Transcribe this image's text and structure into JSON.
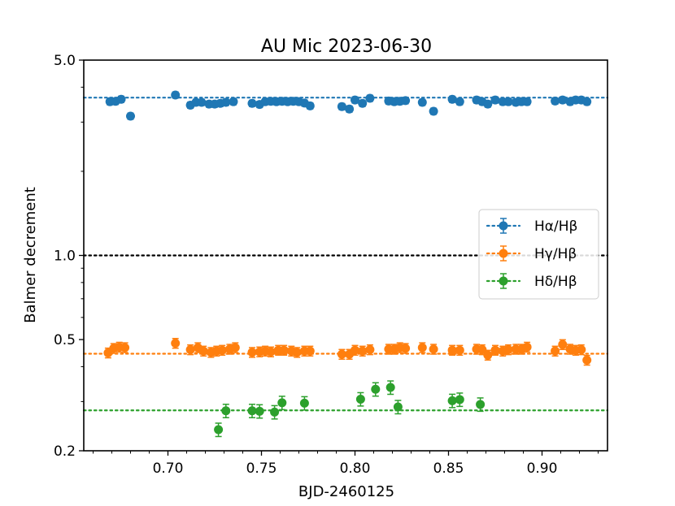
{
  "chart_data": {
    "type": "scatter",
    "title": "AU Mic 2023-06-30",
    "xlabel": "BJD-2460125",
    "ylabel": "Balmer decrement",
    "yscale": "log",
    "xlim": [
      0.655,
      0.935
    ],
    "ylim": [
      0.2,
      5.0
    ],
    "x_ticks": [
      {
        "value": 0.7,
        "label": "0.70"
      },
      {
        "value": 0.75,
        "label": "0.75"
      },
      {
        "value": 0.8,
        "label": "0.80"
      },
      {
        "value": 0.85,
        "label": "0.85"
      },
      {
        "value": 0.9,
        "label": "0.90"
      }
    ],
    "y_ticks": [
      {
        "value": 0.2,
        "label": "0.2"
      },
      {
        "value": 0.5,
        "label": "0.5"
      },
      {
        "value": 1.0,
        "label": "1.0"
      },
      {
        "value": 5.0,
        "label": "5.0"
      }
    ],
    "y_minor_ticks": [
      0.3,
      0.4,
      0.6,
      0.7,
      0.8,
      0.9,
      2,
      3,
      4
    ],
    "grid": false,
    "legend_position": "right",
    "reference_lines": [
      {
        "y": 1.0,
        "color": "#000000"
      },
      {
        "y": 3.67,
        "color": "#1f77b4"
      },
      {
        "y": 0.445,
        "color": "#ff7f0e"
      },
      {
        "y": 0.279,
        "color": "#2ca02c"
      }
    ],
    "series": [
      {
        "name": "Hα/Hβ",
        "color": "#1f77b4",
        "err_frac": 0.025,
        "points": [
          [
            0.669,
            3.55
          ],
          [
            0.672,
            3.56
          ],
          [
            0.675,
            3.62
          ],
          [
            0.68,
            3.15
          ],
          [
            0.704,
            3.75
          ],
          [
            0.712,
            3.45
          ],
          [
            0.715,
            3.53
          ],
          [
            0.718,
            3.53
          ],
          [
            0.722,
            3.48
          ],
          [
            0.725,
            3.48
          ],
          [
            0.728,
            3.5
          ],
          [
            0.731,
            3.53
          ],
          [
            0.735,
            3.55
          ],
          [
            0.745,
            3.5
          ],
          [
            0.749,
            3.47
          ],
          [
            0.752,
            3.55
          ],
          [
            0.755,
            3.56
          ],
          [
            0.758,
            3.55
          ],
          [
            0.761,
            3.56
          ],
          [
            0.764,
            3.55
          ],
          [
            0.767,
            3.56
          ],
          [
            0.77,
            3.55
          ],
          [
            0.773,
            3.51
          ],
          [
            0.776,
            3.43
          ],
          [
            0.793,
            3.41
          ],
          [
            0.797,
            3.34
          ],
          [
            0.8,
            3.6
          ],
          [
            0.804,
            3.5
          ],
          [
            0.808,
            3.65
          ],
          [
            0.818,
            3.57
          ],
          [
            0.821,
            3.55
          ],
          [
            0.824,
            3.56
          ],
          [
            0.827,
            3.58
          ],
          [
            0.836,
            3.53
          ],
          [
            0.842,
            3.28
          ],
          [
            0.852,
            3.62
          ],
          [
            0.856,
            3.55
          ],
          [
            0.865,
            3.6
          ],
          [
            0.868,
            3.55
          ],
          [
            0.871,
            3.48
          ],
          [
            0.875,
            3.6
          ],
          [
            0.879,
            3.55
          ],
          [
            0.882,
            3.55
          ],
          [
            0.886,
            3.53
          ],
          [
            0.889,
            3.55
          ],
          [
            0.892,
            3.55
          ],
          [
            0.907,
            3.57
          ],
          [
            0.911,
            3.6
          ],
          [
            0.915,
            3.55
          ],
          [
            0.918,
            3.6
          ],
          [
            0.921,
            3.6
          ],
          [
            0.924,
            3.55
          ]
        ]
      },
      {
        "name": "Hγ/Hβ",
        "color": "#ff7f0e",
        "err_frac": 0.04,
        "points": [
          [
            0.668,
            0.448
          ],
          [
            0.671,
            0.465
          ],
          [
            0.674,
            0.47
          ],
          [
            0.677,
            0.468
          ],
          [
            0.704,
            0.485
          ],
          [
            0.712,
            0.46
          ],
          [
            0.716,
            0.468
          ],
          [
            0.719,
            0.455
          ],
          [
            0.723,
            0.45
          ],
          [
            0.726,
            0.455
          ],
          [
            0.729,
            0.458
          ],
          [
            0.733,
            0.462
          ],
          [
            0.736,
            0.468
          ],
          [
            0.745,
            0.45
          ],
          [
            0.749,
            0.452
          ],
          [
            0.752,
            0.455
          ],
          [
            0.755,
            0.452
          ],
          [
            0.759,
            0.458
          ],
          [
            0.762,
            0.458
          ],
          [
            0.766,
            0.455
          ],
          [
            0.769,
            0.45
          ],
          [
            0.773,
            0.455
          ],
          [
            0.776,
            0.455
          ],
          [
            0.793,
            0.443
          ],
          [
            0.797,
            0.443
          ],
          [
            0.8,
            0.458
          ],
          [
            0.804,
            0.455
          ],
          [
            0.808,
            0.46
          ],
          [
            0.818,
            0.462
          ],
          [
            0.821,
            0.462
          ],
          [
            0.824,
            0.468
          ],
          [
            0.827,
            0.465
          ],
          [
            0.836,
            0.468
          ],
          [
            0.842,
            0.462
          ],
          [
            0.852,
            0.458
          ],
          [
            0.856,
            0.458
          ],
          [
            0.865,
            0.462
          ],
          [
            0.868,
            0.46
          ],
          [
            0.871,
            0.44
          ],
          [
            0.875,
            0.458
          ],
          [
            0.879,
            0.455
          ],
          [
            0.882,
            0.46
          ],
          [
            0.886,
            0.462
          ],
          [
            0.889,
            0.462
          ],
          [
            0.892,
            0.47
          ],
          [
            0.907,
            0.455
          ],
          [
            0.911,
            0.48
          ],
          [
            0.915,
            0.462
          ],
          [
            0.918,
            0.458
          ],
          [
            0.921,
            0.46
          ],
          [
            0.924,
            0.422
          ]
        ]
      },
      {
        "name": "Hδ/Hβ",
        "color": "#2ca02c",
        "err_frac": 0.055,
        "points": [
          [
            0.727,
            0.238
          ],
          [
            0.731,
            0.278
          ],
          [
            0.745,
            0.278
          ],
          [
            0.749,
            0.277
          ],
          [
            0.757,
            0.275
          ],
          [
            0.761,
            0.297
          ],
          [
            0.773,
            0.296
          ],
          [
            0.803,
            0.306
          ],
          [
            0.811,
            0.332
          ],
          [
            0.819,
            0.337
          ],
          [
            0.823,
            0.287
          ],
          [
            0.852,
            0.302
          ],
          [
            0.856,
            0.305
          ],
          [
            0.867,
            0.293
          ]
        ]
      }
    ]
  }
}
